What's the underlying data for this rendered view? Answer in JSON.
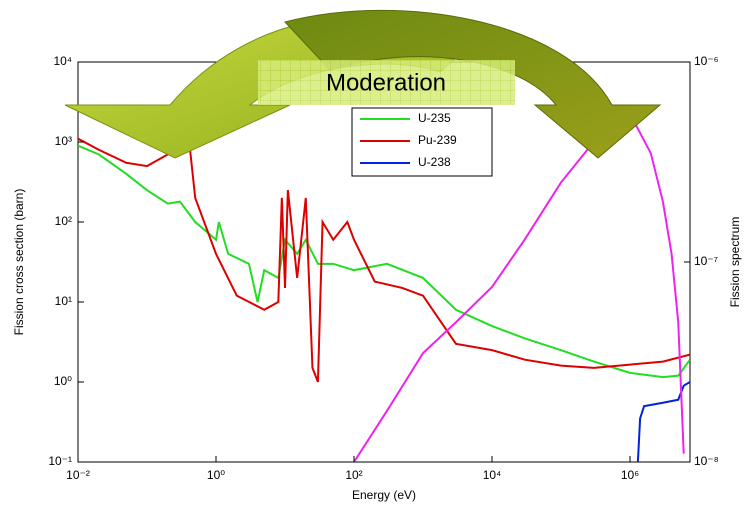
{
  "chart_data": {
    "type": "line",
    "annotation": "Moderation",
    "xlabel": "Energy (eV)",
    "ylabel": "Fission cross section (barn)",
    "y2label": "Fission spectrum",
    "xscale": "log",
    "yscale": "log",
    "y2scale": "log",
    "xlim": [
      0.01,
      7400000
    ],
    "ylim": [
      0.1,
      10000
    ],
    "y2lim": [
      1e-08,
      1e-06
    ],
    "xticks": [
      {
        "value": 0.01,
        "label": "10⁻²"
      },
      {
        "value": 1,
        "label": "10⁰"
      },
      {
        "value": 100,
        "label": "10²"
      },
      {
        "value": 10000,
        "label": "10⁴"
      },
      {
        "value": 1000000,
        "label": "10⁶"
      }
    ],
    "yticks": [
      {
        "value": 0.1,
        "label": "10⁻¹"
      },
      {
        "value": 1,
        "label": "10⁰"
      },
      {
        "value": 10,
        "label": "10¹"
      },
      {
        "value": 100,
        "label": "10²"
      },
      {
        "value": 1000,
        "label": "10³"
      },
      {
        "value": 10000,
        "label": "10⁴"
      }
    ],
    "y2ticks": [
      {
        "value": 1e-08,
        "label": "10⁻⁸"
      },
      {
        "value": 1e-07,
        "label": "10⁻⁷"
      },
      {
        "value": 1e-06,
        "label": "10⁻⁶"
      }
    ],
    "series": [
      {
        "name": "U-235",
        "color": "#22dd22",
        "x": [
          0.01,
          0.02,
          0.05,
          0.1,
          0.2,
          0.3,
          0.5,
          1,
          1.1,
          1.5,
          3,
          4,
          5,
          8,
          10,
          15,
          20,
          30,
          50,
          100,
          300,
          1000,
          3000,
          10000,
          30000,
          100000,
          300000,
          1000000,
          3000000,
          5000000,
          7400000
        ],
        "values": [
          900,
          700,
          400,
          250,
          170,
          180,
          100,
          60,
          100,
          40,
          30,
          10,
          25,
          20,
          60,
          40,
          60,
          30,
          30,
          25,
          30,
          20,
          8,
          5,
          3.5,
          2.5,
          1.8,
          1.3,
          1.15,
          1.2,
          1.9
        ]
      },
      {
        "name": "Pu-239",
        "color": "#dd0000",
        "x": [
          0.01,
          0.02,
          0.05,
          0.1,
          0.2,
          0.3,
          0.4,
          0.5,
          1,
          2,
          5,
          8,
          9,
          10,
          11,
          15,
          20,
          25,
          30,
          35,
          50,
          80,
          100,
          200,
          500,
          1000,
          3000,
          10000,
          30000,
          100000,
          300000,
          1000000,
          3000000,
          7400000
        ],
        "values": [
          1100,
          800,
          550,
          500,
          700,
          1500,
          1200,
          200,
          40,
          12,
          8,
          10,
          200,
          15,
          250,
          20,
          200,
          1.5,
          1,
          100,
          60,
          100,
          60,
          18,
          15,
          12,
          3,
          2.5,
          1.9,
          1.6,
          1.5,
          1.65,
          1.8,
          2.2
        ]
      },
      {
        "name": "U-238",
        "color": "#0022dd",
        "x": [
          1300000,
          1400000,
          1600000,
          3000000,
          5000000,
          6000000,
          7400000
        ],
        "values": [
          0.1,
          0.35,
          0.5,
          0.55,
          0.6,
          0.9,
          1.0
        ]
      },
      {
        "name": null,
        "color": "#ee22ee",
        "axis": "y2",
        "x": [
          100,
          300,
          1000,
          3000,
          10000,
          30000,
          100000,
          300000,
          600000,
          1000000,
          2000000,
          3000000,
          4000000,
          5000000,
          6000000
        ],
        "values": [
          1e-08,
          1.8e-08,
          3.5e-08,
          5e-08,
          7.5e-08,
          1.3e-07,
          2.5e-07,
          4e-07,
          5.2e-07,
          5.5e-07,
          3.5e-07,
          2e-07,
          1.1e-07,
          5e-08,
          1.1e-08
        ]
      }
    ]
  }
}
